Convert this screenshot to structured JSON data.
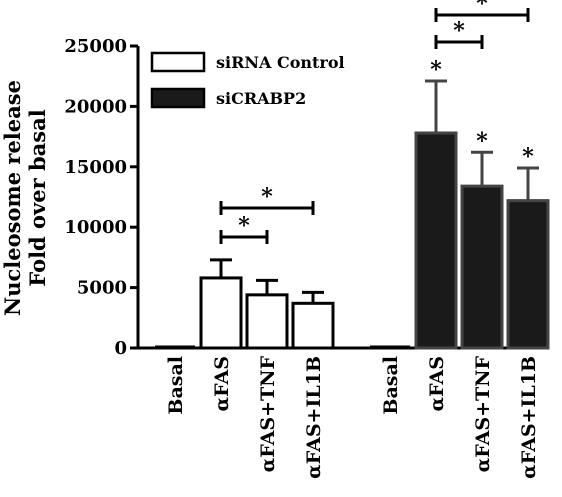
{
  "chart_data": {
    "type": "bar",
    "ylabel_lines": [
      "Nucleosome release",
      "Fold over basal"
    ],
    "ylim": [
      0,
      25000
    ],
    "yticks": [
      0,
      5000,
      10000,
      15000,
      20000,
      25000
    ],
    "ytick_labels": [
      "0",
      "5000",
      "10000",
      "15000",
      "20000",
      "25000"
    ],
    "categories": [
      "Basal",
      "αFAS",
      "αFAS+TNF",
      "αFAS+IL1B"
    ],
    "series": [
      {
        "name": "siRNA Control",
        "color": "#ffffff",
        "values": [
          0,
          5800,
          4400,
          3700
        ],
        "errors": [
          0,
          1500,
          1200,
          900
        ],
        "stars": [
          false,
          false,
          false,
          false
        ]
      },
      {
        "name": "siCRABP2",
        "color": "#1a1a1a",
        "values": [
          0,
          17800,
          13400,
          12200
        ],
        "errors": [
          0,
          4300,
          2800,
          2700
        ],
        "stars": [
          false,
          true,
          true,
          true
        ]
      }
    ],
    "significance_brackets": [
      {
        "series": 0,
        "from": 1,
        "to": 2,
        "label": "*"
      },
      {
        "series": 0,
        "from": 1,
        "to": 3,
        "label": "*"
      },
      {
        "series": 1,
        "from": 1,
        "to": 2,
        "label": "*"
      },
      {
        "series": 1,
        "from": 1,
        "to": 3,
        "label": "*"
      }
    ],
    "legend_position": "top-left"
  }
}
